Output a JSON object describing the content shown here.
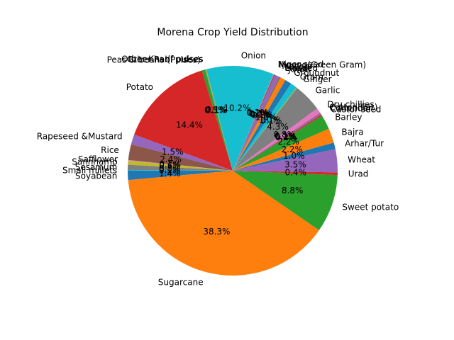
{
  "chart_data": {
    "type": "pie",
    "title": "Morena Crop Yield Distribution",
    "start_angle_deg": 180,
    "direction": "counterclockwise",
    "slices": [
      {
        "label": "Soyabean",
        "value": 1.4,
        "pct": "1.4%",
        "color": "#1f77b4"
      },
      {
        "label": "Sugarcane",
        "value": 38.3,
        "pct": "38.3%",
        "color": "#ff7f0e"
      },
      {
        "label": "Sweet potato",
        "value": 8.8,
        "pct": "8.8%",
        "color": "#2ca02c"
      },
      {
        "label": "Urad",
        "value": 0.4,
        "pct": "0.4%",
        "color": "#d62728"
      },
      {
        "label": "Wheat",
        "value": 3.5,
        "pct": "3.5%",
        "color": "#9467bd"
      },
      {
        "label": "Arhar/Tur",
        "value": 1.0,
        "pct": "1.0%",
        "color": "#1f77b4"
      },
      {
        "label": "Bajra",
        "value": 2.2,
        "pct": "2.2%",
        "color": "#ff7f0e"
      },
      {
        "label": "Barley",
        "value": 2.2,
        "pct": "2.2%",
        "color": "#2ca02c"
      },
      {
        "label": "Castor seed",
        "value": 0.2,
        "pct": "0.2%",
        "color": "#d62728"
      },
      {
        "label": "Coriander",
        "value": 0.2,
        "pct": "0.2%",
        "color": "#9467bd"
      },
      {
        "label": "Cotton(lint)",
        "value": 0.1,
        "pct": "0.1%",
        "color": "#8c564b"
      },
      {
        "label": "Dry chillies",
        "value": 0.8,
        "pct": "0.8%",
        "color": "#e377c2"
      },
      {
        "label": "Garlic",
        "value": 4.3,
        "pct": "4.3%",
        "color": "#7f7f7f"
      },
      {
        "label": "Ginger",
        "value": 0.1,
        "pct": "0.1%",
        "color": "#bcbd22"
      },
      {
        "label": "Gram",
        "value": 1.0,
        "pct": "1.0%",
        "color": "#17becf"
      },
      {
        "label": "Groundnut",
        "value": 1.0,
        "pct": "1.0%",
        "color": "#1f77b4"
      },
      {
        "label": "Jowar",
        "value": 0.8,
        "pct": "0.8%",
        "color": "#ff7f0e"
      },
      {
        "label": "Linseed",
        "value": 0.1,
        "pct": "0.1%",
        "color": "#2ca02c"
      },
      {
        "label": "Maize",
        "value": 0.1,
        "pct": "0.1%",
        "color": "#d62728"
      },
      {
        "label": "Masoor",
        "value": 0.7,
        "pct": "0.7%",
        "color": "#9467bd"
      },
      {
        "label": "Moong(Green Gram)",
        "value": 0.2,
        "pct": "0.2%",
        "color": "#8c564b"
      },
      {
        "label": "Niger seed",
        "value": 0.1,
        "pct": "0.1%",
        "color": "#e377c2"
      },
      {
        "label": "Onion",
        "value": 10.2,
        "pct": "10.2%",
        "color": "#17becf"
      },
      {
        "label": "Other Kharif pulses",
        "value": 0.1,
        "pct": "0.1%",
        "color": "#bcbd22"
      },
      {
        "label": "Other Rabi pulses",
        "value": 0.1,
        "pct": "0.1%",
        "color": "#7f7f7f"
      },
      {
        "label": "Peas & beans (Pulses)",
        "value": 0.5,
        "pct": "0.5%",
        "color": "#2ca02c"
      },
      {
        "label": "Potato",
        "value": 14.4,
        "pct": "14.4%",
        "color": "#d62728"
      },
      {
        "label": "Rapeseed &Mustard",
        "value": 1.5,
        "pct": "1.5%",
        "color": "#9467bd"
      },
      {
        "label": "Rice",
        "value": 2.4,
        "pct": "2.4%",
        "color": "#8c564b"
      },
      {
        "label": "Safflower",
        "value": 0.1,
        "pct": "0.1%",
        "color": "#e377c2"
      },
      {
        "label": "Sannhamp",
        "value": 0.6,
        "pct": "0.6%",
        "color": "#bcbd22"
      },
      {
        "label": "Sesamum",
        "value": 0.8,
        "pct": "0.8%",
        "color": "#7f7f7f"
      },
      {
        "label": "Small millets",
        "value": 0.1,
        "pct": "0.1%",
        "color": "#17becf"
      }
    ]
  }
}
